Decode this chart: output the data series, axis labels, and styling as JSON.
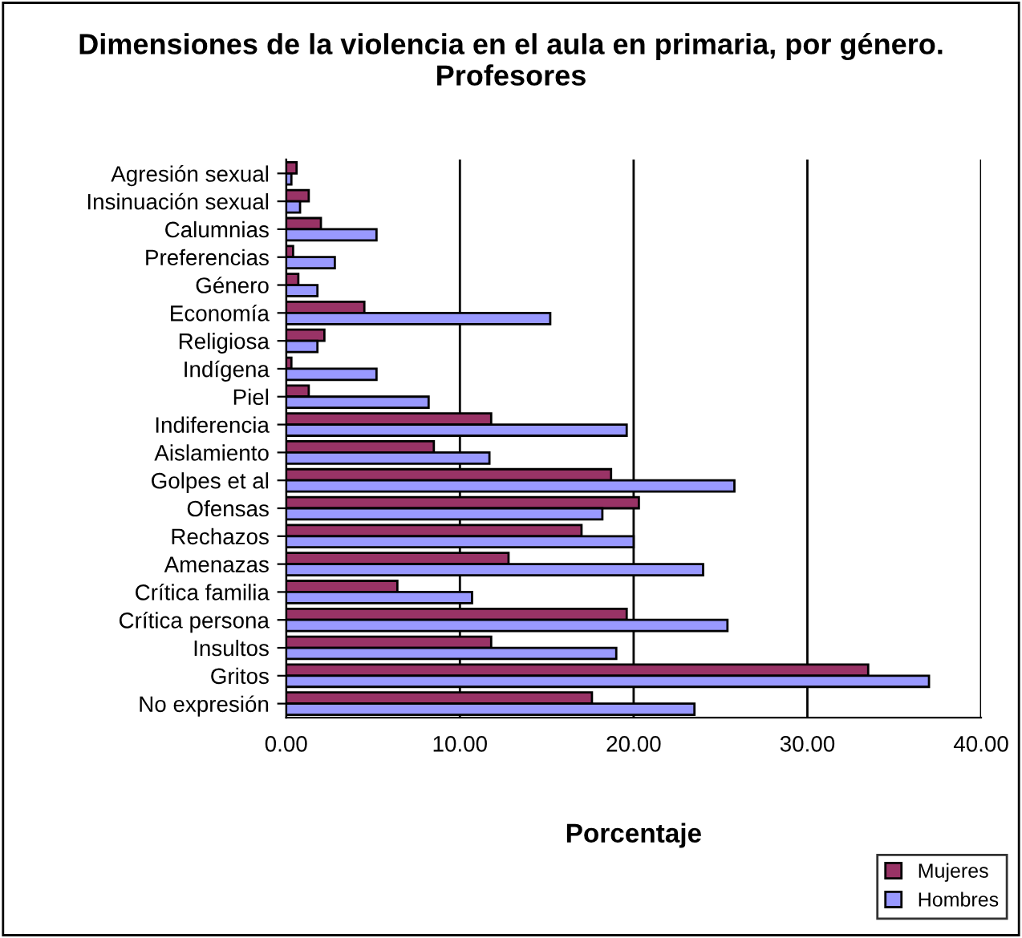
{
  "chart_data": {
    "type": "bar",
    "orientation": "horizontal",
    "title": "Dimensiones de la violencia en el aula en primaria, por género. Profesores",
    "xlabel": "Porcentaje",
    "categories": [
      "Agresión sexual",
      "Insinuación sexual",
      "Calumnias",
      "Preferencias",
      "Género",
      "Economía",
      "Religiosa",
      "Indígena",
      "Piel",
      "Indiferencia",
      "Aislamiento",
      "Golpes et al",
      "Ofensas",
      "Rechazos",
      "Amenazas",
      "Crítica familia",
      "Crítica persona",
      "Insultos",
      "Gritos",
      "No expresión"
    ],
    "series": [
      {
        "name": "Mujeres",
        "color": "#993366",
        "values": [
          0.6,
          1.3,
          2.0,
          0.4,
          0.7,
          4.5,
          2.2,
          0.3,
          1.3,
          11.8,
          8.5,
          18.7,
          20.3,
          17.0,
          12.8,
          6.4,
          19.6,
          11.8,
          33.5,
          17.6
        ]
      },
      {
        "name": "Hombres",
        "color": "#9999ff",
        "values": [
          0.3,
          0.8,
          5.2,
          2.8,
          1.8,
          15.2,
          1.8,
          5.2,
          8.2,
          19.6,
          11.7,
          25.8,
          18.2,
          20.0,
          24.0,
          10.7,
          25.4,
          19.0,
          37.0,
          23.5
        ]
      }
    ],
    "xlim": [
      0,
      40
    ],
    "xticks": [
      {
        "value": 0,
        "label": "0.00"
      },
      {
        "value": 10,
        "label": "10.00"
      },
      {
        "value": 20,
        "label": "20.00"
      },
      {
        "value": 30,
        "label": "30.00"
      },
      {
        "value": 40,
        "label": "40.00"
      }
    ],
    "grid": "x",
    "legend": "bottom right"
  }
}
